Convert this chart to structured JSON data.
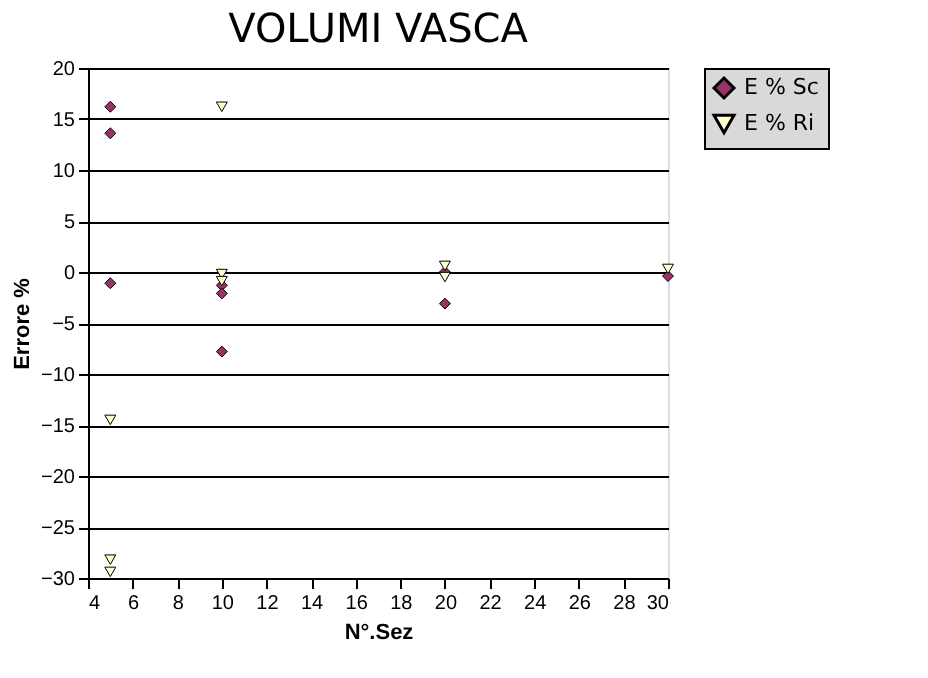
{
  "chart_data": {
    "type": "scatter",
    "title": "VOLUMI VASCA",
    "xlabel": "N°.Sez",
    "ylabel": "Errore %",
    "series": [
      {
        "name": "E % Sc",
        "color": "#993366",
        "marker": "diamond",
        "x": [
          5,
          5,
          5,
          10,
          10,
          10,
          20,
          20,
          30
        ],
        "values": [
          16.2,
          13.6,
          -1.1,
          -1.3,
          -2.1,
          -7.8,
          0,
          -3.1,
          -0.4
        ]
      },
      {
        "name": "E % Ri",
        "color": "#ffffcc",
        "marker": "triangle",
        "x": [
          5,
          5,
          5,
          10,
          10,
          10,
          20,
          20,
          30
        ],
        "values": [
          -14.5,
          -28.2,
          -29.4,
          16.2,
          -0.2,
          -0.9,
          0.6,
          -0.5,
          0.3
        ]
      }
    ],
    "xlim": [
      4,
      30
    ],
    "xticks": [
      4,
      6,
      8,
      10,
      12,
      14,
      16,
      18,
      20,
      22,
      24,
      26,
      28,
      30
    ],
    "ylim": [
      -30,
      20
    ],
    "yticks": [
      -30,
      -25,
      -20,
      -15,
      -10,
      -5,
      0,
      5,
      10,
      15,
      20
    ],
    "grid": "y",
    "legend": "right"
  }
}
